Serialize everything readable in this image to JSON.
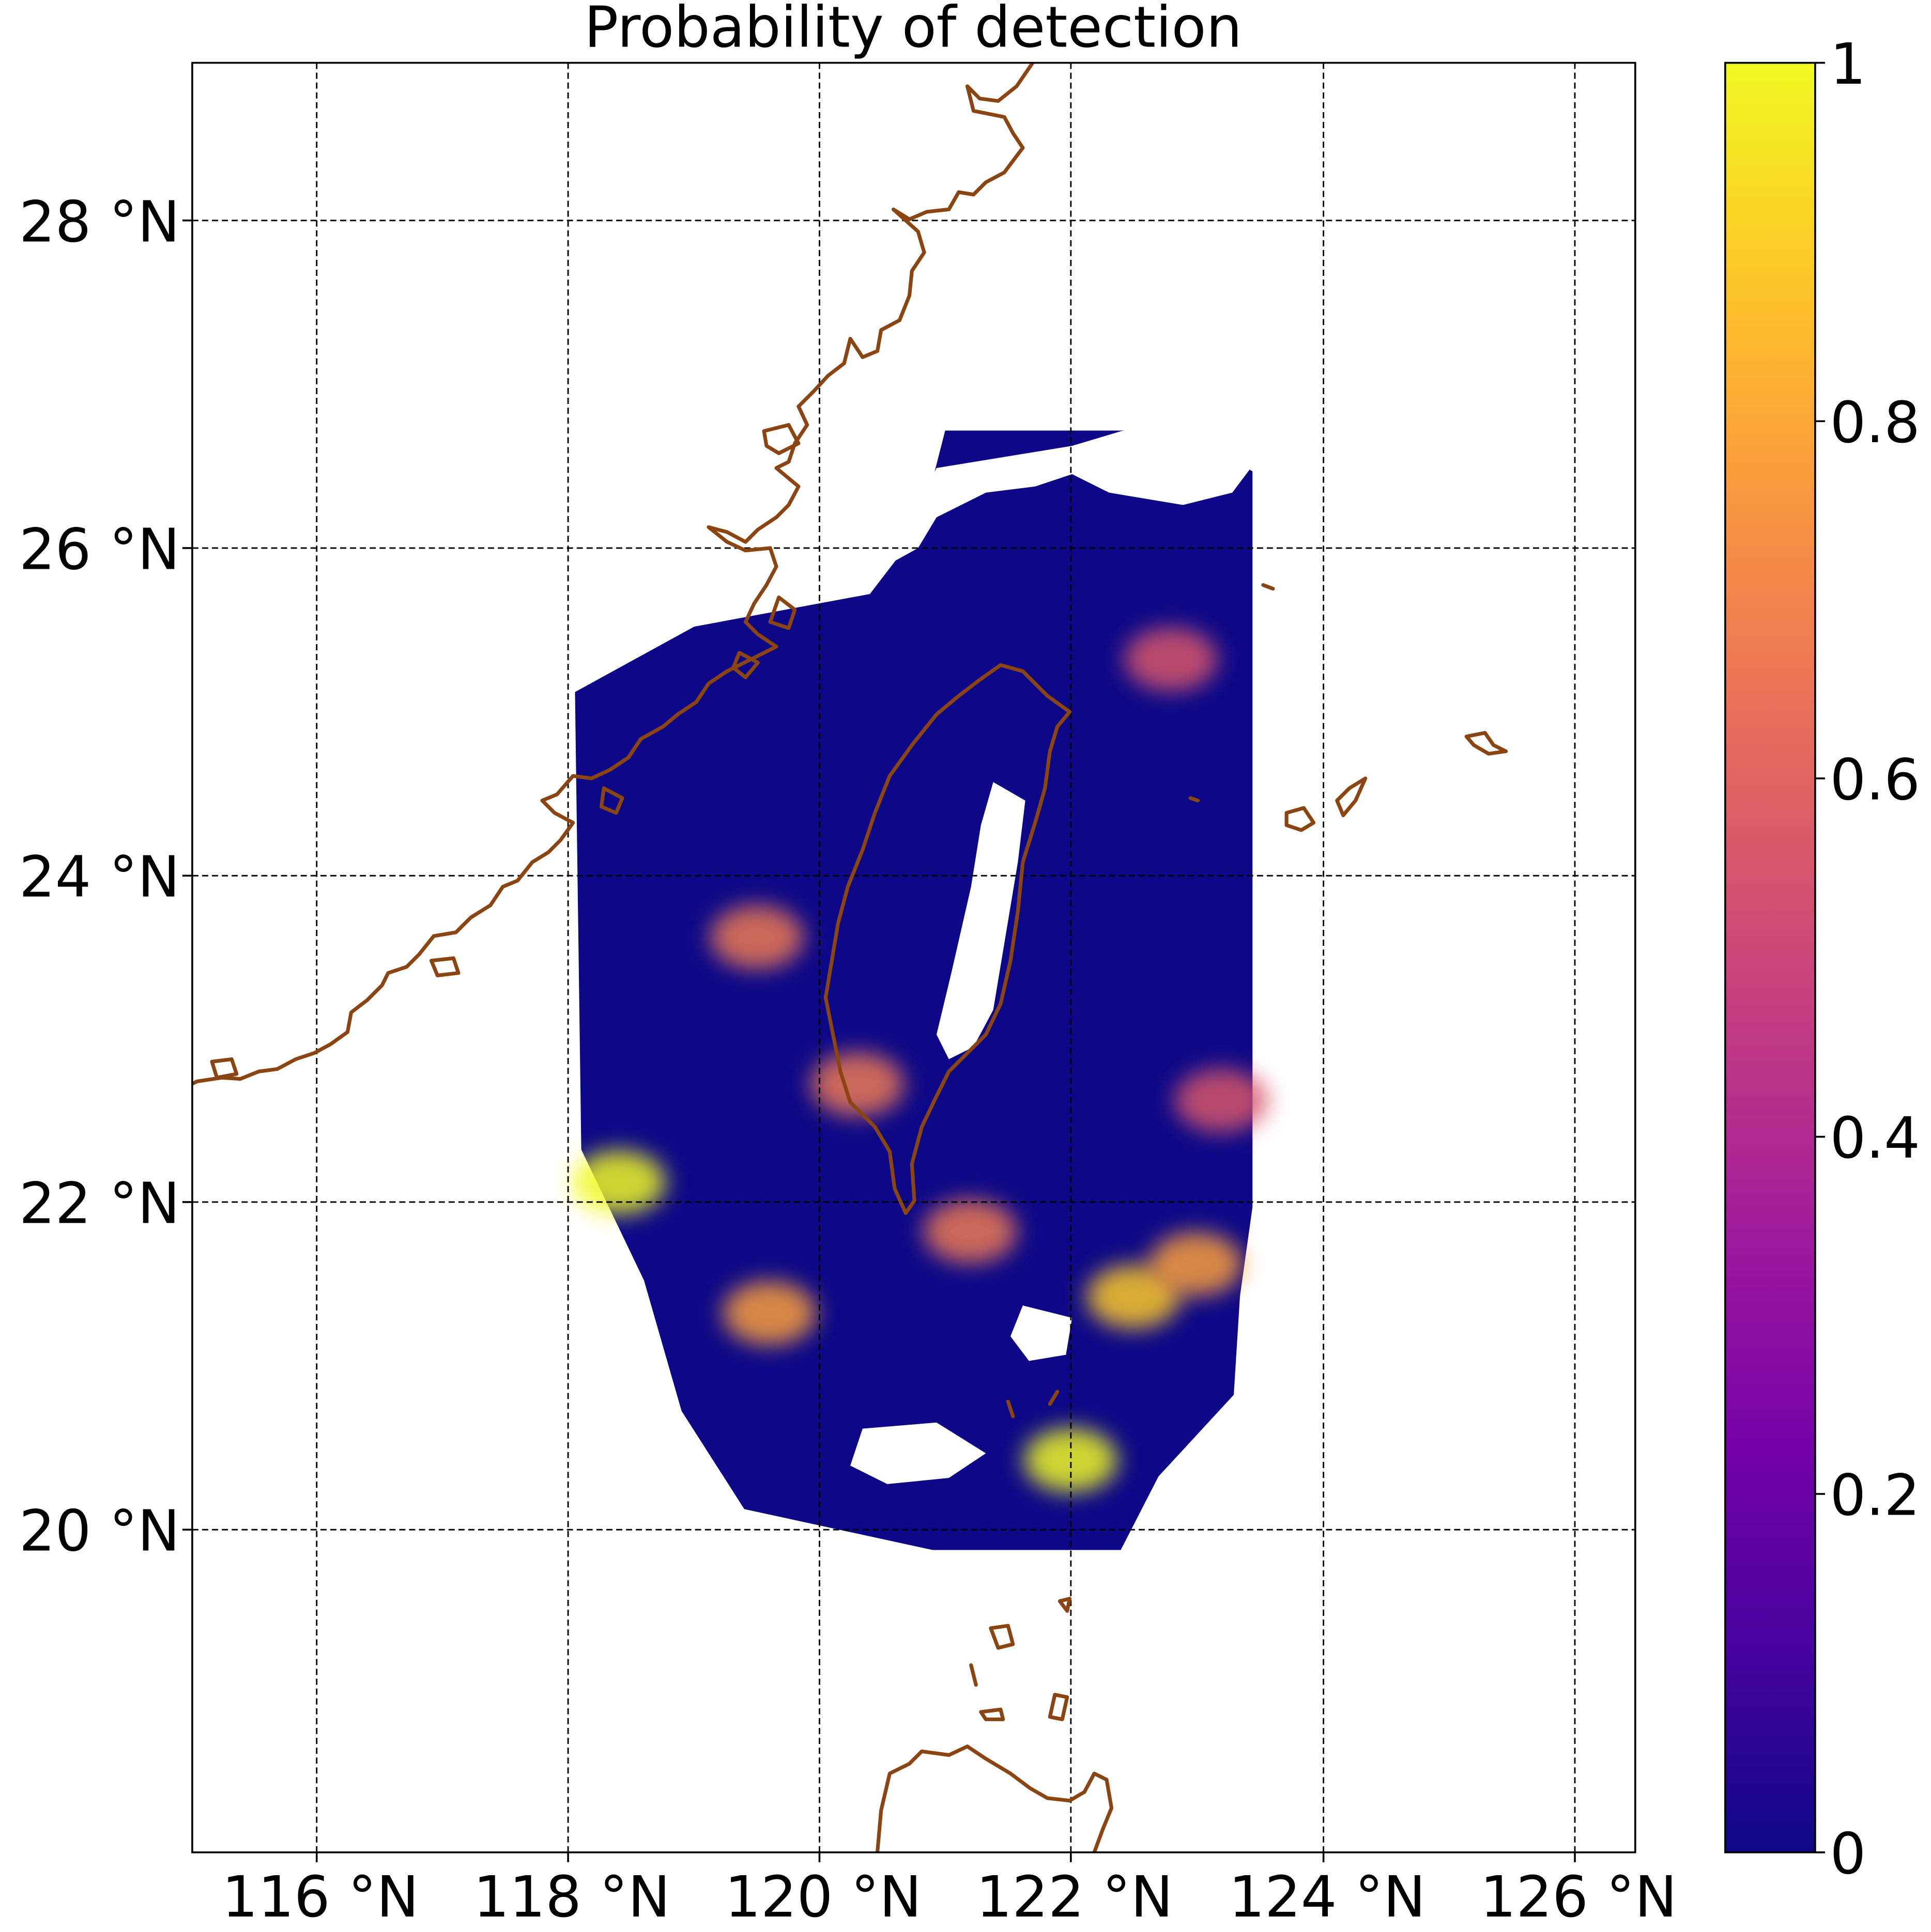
{
  "title": "Probability of detection",
  "map": {
    "x_ticks": [
      "116 °N",
      "118 °N",
      "120 °N",
      "122 °N",
      "124 °N",
      "126 °N"
    ],
    "y_ticks": [
      "28 °N",
      "26 °N",
      "24 °N",
      "22 °N",
      "20 °N"
    ],
    "lon_range": [
      115.0,
      126.5
    ],
    "lat_range": [
      18.2,
      29.15
    ],
    "gridlines": true,
    "coastline_color": "#8b4513",
    "features": [
      "coastline-southeast-china",
      "coastline-taiwan",
      "coastline-luzon",
      "islands-ryukyu",
      "islands-batanes",
      "islands-babuyan"
    ]
  },
  "colorbar": {
    "ticks": [
      "0",
      "0.2",
      "0.4",
      "0.6",
      "0.8",
      "1"
    ],
    "colormap": "plasma",
    "range": [
      0,
      1
    ],
    "colors": [
      "#0d0887",
      "#46039f",
      "#7201a8",
      "#9c179e",
      "#bd3786",
      "#d8576b",
      "#ed7953",
      "#fb9f3a",
      "#fdca26",
      "#f0f921"
    ]
  },
  "chart_data": {
    "type": "heatmap",
    "title": "Probability of detection",
    "xlabel": "",
    "ylabel": "",
    "xlim": [
      115.0,
      126.5
    ],
    "ylim": [
      18.2,
      29.15
    ],
    "value_range": [
      0,
      1
    ],
    "swath_outline_lonlat": [
      [
        121.0,
        26.9
      ],
      [
        122.9,
        26.9
      ],
      [
        123.45,
        26.65
      ],
      [
        123.45,
        22.15
      ],
      [
        123.35,
        21.6
      ],
      [
        123.3,
        21.0
      ],
      [
        122.7,
        20.5
      ],
      [
        122.4,
        20.05
      ],
      [
        120.9,
        20.05
      ],
      [
        119.4,
        20.3
      ],
      [
        118.9,
        20.9
      ],
      [
        118.6,
        21.7
      ],
      [
        118.1,
        22.5
      ],
      [
        118.05,
        25.3
      ],
      [
        119.0,
        25.7
      ],
      [
        120.4,
        25.9
      ],
      [
        120.8,
        26.3
      ],
      [
        121.0,
        26.9
      ]
    ],
    "high_probability_regions": [
      {
        "lon": 122.0,
        "lat": 20.6,
        "value": 0.95
      },
      {
        "lon": 122.5,
        "lat": 21.6,
        "value": 0.85
      },
      {
        "lon": 123.0,
        "lat": 21.8,
        "value": 0.8
      },
      {
        "lon": 118.4,
        "lat": 22.3,
        "value": 0.95
      },
      {
        "lon": 119.6,
        "lat": 21.5,
        "value": 0.75
      },
      {
        "lon": 120.3,
        "lat": 22.9,
        "value": 0.7
      },
      {
        "lon": 119.5,
        "lat": 23.8,
        "value": 0.7
      },
      {
        "lon": 121.2,
        "lat": 22.0,
        "value": 0.7
      },
      {
        "lon": 123.2,
        "lat": 22.8,
        "value": 0.6
      },
      {
        "lon": 122.8,
        "lat": 25.5,
        "value": 0.5
      }
    ],
    "background_value": 0.05
  }
}
